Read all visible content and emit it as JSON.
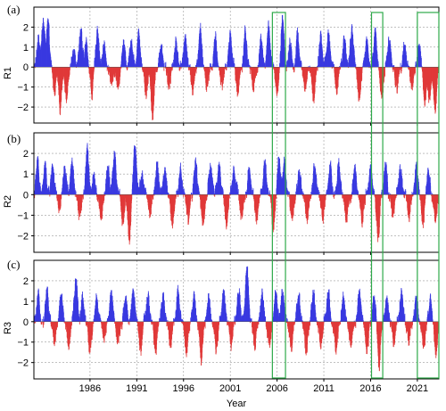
{
  "colors": {
    "positive": "#3a3ae0",
    "negative": "#e03a3a",
    "highlight": "#2eaa4a",
    "grid": "#9a9a9a",
    "axis": "#000000"
  },
  "chart_data": {
    "type": "bar",
    "xlabel": "Year",
    "xlim": [
      1980.0,
      2023.3
    ],
    "x_ticks": [
      1986,
      1991,
      1996,
      2001,
      2006,
      2011,
      2016,
      2021
    ],
    "x_tick_labels": [
      "1986",
      "1991",
      "1996",
      "2001",
      "2006",
      "2011",
      "2016",
      "2021"
    ],
    "ylim": [
      -2.8,
      3.0
    ],
    "y_ticks": [
      -2,
      -1,
      0,
      1,
      2
    ],
    "y_tick_labels": [
      "−2",
      "−1",
      "0",
      "1",
      "2"
    ],
    "grid": true,
    "highlight_periods": [
      [
        2005.5,
        2006.9
      ],
      [
        2016.1,
        2017.3
      ],
      [
        2021.0,
        2023.3
      ]
    ],
    "sampling": "weekly",
    "panels": [
      {
        "label": "(a)",
        "ylabel": "R1",
        "events": [
          {
            "t": 1980.5,
            "v": 1.5
          },
          {
            "t": 1981.0,
            "v": 2.3
          },
          {
            "t": 1981.5,
            "v": 2.2
          },
          {
            "t": 1982.2,
            "v": -1.2
          },
          {
            "t": 1982.8,
            "v": -2.1
          },
          {
            "t": 1983.5,
            "v": -1.6
          },
          {
            "t": 1984.3,
            "v": 1.0
          },
          {
            "t": 1985.0,
            "v": 1.9
          },
          {
            "t": 1985.6,
            "v": 1.2
          },
          {
            "t": 1986.2,
            "v": -1.3
          },
          {
            "t": 1986.8,
            "v": 2.0
          },
          {
            "t": 1987.5,
            "v": 1.1
          },
          {
            "t": 1988.3,
            "v": -0.8
          },
          {
            "t": 1989.0,
            "v": -1.1
          },
          {
            "t": 1989.6,
            "v": 1.2
          },
          {
            "t": 1990.4,
            "v": 1.5
          },
          {
            "t": 1991.2,
            "v": 1.9
          },
          {
            "t": 1992.0,
            "v": -1.4
          },
          {
            "t": 1992.7,
            "v": -2.5
          },
          {
            "t": 1993.6,
            "v": 1.1
          },
          {
            "t": 1994.4,
            "v": -1.0
          },
          {
            "t": 1995.2,
            "v": 1.3
          },
          {
            "t": 1996.2,
            "v": 1.7
          },
          {
            "t": 1997.0,
            "v": -1.2
          },
          {
            "t": 1997.8,
            "v": 1.9
          },
          {
            "t": 1998.5,
            "v": -1.1
          },
          {
            "t": 1999.4,
            "v": 1.4
          },
          {
            "t": 2000.1,
            "v": -0.9
          },
          {
            "t": 2001.0,
            "v": 1.7
          },
          {
            "t": 2001.8,
            "v": -1.3
          },
          {
            "t": 2002.6,
            "v": 1.8
          },
          {
            "t": 2003.5,
            "v": -1.1
          },
          {
            "t": 2004.3,
            "v": 1.5
          },
          {
            "t": 2005.1,
            "v": 2.1
          },
          {
            "t": 2006.0,
            "v": -1.5
          },
          {
            "t": 2006.6,
            "v": 2.4
          },
          {
            "t": 2007.4,
            "v": 1.3
          },
          {
            "t": 2008.2,
            "v": 1.7
          },
          {
            "t": 2009.0,
            "v": -1.2
          },
          {
            "t": 2009.9,
            "v": -1.7
          },
          {
            "t": 2010.7,
            "v": 1.5
          },
          {
            "t": 2011.5,
            "v": 1.9
          },
          {
            "t": 2012.4,
            "v": -1.3
          },
          {
            "t": 2013.2,
            "v": 1.6
          },
          {
            "t": 2014.0,
            "v": 2.0
          },
          {
            "t": 2014.8,
            "v": -1.6
          },
          {
            "t": 2015.6,
            "v": 1.3
          },
          {
            "t": 2016.5,
            "v": 1.8
          },
          {
            "t": 2017.2,
            "v": -1.5
          },
          {
            "t": 2018.0,
            "v": 1.4
          },
          {
            "t": 2018.8,
            "v": -1.1
          },
          {
            "t": 2019.6,
            "v": 1.3
          },
          {
            "t": 2020.4,
            "v": -1.0
          },
          {
            "t": 2021.2,
            "v": 1.2
          },
          {
            "t": 2021.8,
            "v": -1.9
          },
          {
            "t": 2022.3,
            "v": -1.6
          },
          {
            "t": 2022.9,
            "v": -2.3
          }
        ]
      },
      {
        "label": "(b)",
        "ylabel": "R2",
        "events": [
          {
            "t": 1980.4,
            "v": 1.6
          },
          {
            "t": 1981.2,
            "v": 1.4
          },
          {
            "t": 1982.0,
            "v": 1.5
          },
          {
            "t": 1982.7,
            "v": -0.8
          },
          {
            "t": 1983.3,
            "v": 1.3
          },
          {
            "t": 1984.1,
            "v": 1.6
          },
          {
            "t": 1984.9,
            "v": -1.0
          },
          {
            "t": 1985.7,
            "v": 2.2
          },
          {
            "t": 1986.4,
            "v": 1.1
          },
          {
            "t": 1987.2,
            "v": -1.2
          },
          {
            "t": 1987.9,
            "v": 1.3
          },
          {
            "t": 1988.6,
            "v": 2.1
          },
          {
            "t": 1989.5,
            "v": -1.3
          },
          {
            "t": 1990.2,
            "v": -2.3
          },
          {
            "t": 1990.8,
            "v": 2.4
          },
          {
            "t": 1991.6,
            "v": 1.1
          },
          {
            "t": 1992.4,
            "v": -1.1
          },
          {
            "t": 1993.2,
            "v": 1.5
          },
          {
            "t": 1994.0,
            "v": 1.2
          },
          {
            "t": 1994.8,
            "v": -1.5
          },
          {
            "t": 1995.7,
            "v": 1.3
          },
          {
            "t": 1996.5,
            "v": -1.2
          },
          {
            "t": 1997.3,
            "v": 1.5
          },
          {
            "t": 1998.1,
            "v": -1.5
          },
          {
            "t": 1998.9,
            "v": 1.4
          },
          {
            "t": 1999.8,
            "v": 1.5
          },
          {
            "t": 2000.6,
            "v": -1.4
          },
          {
            "t": 2001.4,
            "v": 1.3
          },
          {
            "t": 2002.2,
            "v": -1.0
          },
          {
            "t": 2003.0,
            "v": 1.2
          },
          {
            "t": 2003.8,
            "v": -1.2
          },
          {
            "t": 2004.7,
            "v": 1.6
          },
          {
            "t": 2005.6,
            "v": -1.6
          },
          {
            "t": 2006.2,
            "v": 2.0
          },
          {
            "t": 2006.8,
            "v": 1.6
          },
          {
            "t": 2007.6,
            "v": -1.1
          },
          {
            "t": 2008.4,
            "v": 1.3
          },
          {
            "t": 2009.2,
            "v": -1.3
          },
          {
            "t": 2010.0,
            "v": 1.5
          },
          {
            "t": 2010.9,
            "v": -1.1
          },
          {
            "t": 2011.7,
            "v": 1.5
          },
          {
            "t": 2012.6,
            "v": 1.6
          },
          {
            "t": 2013.4,
            "v": -1.3
          },
          {
            "t": 2014.3,
            "v": 1.4
          },
          {
            "t": 2015.1,
            "v": -1.2
          },
          {
            "t": 2016.0,
            "v": 1.3
          },
          {
            "t": 2016.8,
            "v": -2.2
          },
          {
            "t": 2017.6,
            "v": 1.5
          },
          {
            "t": 2018.4,
            "v": -1.2
          },
          {
            "t": 2019.2,
            "v": 1.3
          },
          {
            "t": 2020.1,
            "v": -1.0
          },
          {
            "t": 2020.9,
            "v": 1.2
          },
          {
            "t": 2021.6,
            "v": -1.4
          },
          {
            "t": 2022.2,
            "v": 1.2
          },
          {
            "t": 2022.9,
            "v": -1.3
          }
        ]
      },
      {
        "label": "(c)",
        "ylabel": "R3",
        "events": [
          {
            "t": 1980.5,
            "v": 1.2
          },
          {
            "t": 1981.4,
            "v": 1.6
          },
          {
            "t": 1982.2,
            "v": -1.1
          },
          {
            "t": 1982.9,
            "v": 1.4
          },
          {
            "t": 1983.7,
            "v": -1.2
          },
          {
            "t": 1984.5,
            "v": 2.1
          },
          {
            "t": 1985.2,
            "v": 1.3
          },
          {
            "t": 1986.0,
            "v": -1.5
          },
          {
            "t": 1986.7,
            "v": 1.2
          },
          {
            "t": 1987.5,
            "v": -1.0
          },
          {
            "t": 1988.3,
            "v": 1.6
          },
          {
            "t": 1989.0,
            "v": -1.1
          },
          {
            "t": 1989.8,
            "v": 1.3
          },
          {
            "t": 1990.6,
            "v": 1.5
          },
          {
            "t": 1991.4,
            "v": -1.4
          },
          {
            "t": 1992.2,
            "v": 1.2
          },
          {
            "t": 1993.0,
            "v": -1.6
          },
          {
            "t": 1993.8,
            "v": 1.4
          },
          {
            "t": 1994.6,
            "v": -1.1
          },
          {
            "t": 1995.4,
            "v": 1.3
          },
          {
            "t": 1996.3,
            "v": -1.5
          },
          {
            "t": 1997.1,
            "v": 1.2
          },
          {
            "t": 1997.9,
            "v": -2.0
          },
          {
            "t": 1998.7,
            "v": 1.3
          },
          {
            "t": 1999.5,
            "v": -1.2
          },
          {
            "t": 2000.3,
            "v": 1.5
          },
          {
            "t": 2001.1,
            "v": -1.1
          },
          {
            "t": 2001.9,
            "v": 1.6
          },
          {
            "t": 2002.8,
            "v": 2.7
          },
          {
            "t": 2003.6,
            "v": -1.3
          },
          {
            "t": 2004.4,
            "v": 1.3
          },
          {
            "t": 2005.2,
            "v": -1.2
          },
          {
            "t": 2005.9,
            "v": 1.4
          },
          {
            "t": 2006.6,
            "v": 1.7
          },
          {
            "t": 2007.5,
            "v": -1.3
          },
          {
            "t": 2008.3,
            "v": 1.4
          },
          {
            "t": 2009.1,
            "v": -1.7
          },
          {
            "t": 2009.9,
            "v": 1.3
          },
          {
            "t": 2010.7,
            "v": -1.2
          },
          {
            "t": 2011.5,
            "v": 1.5
          },
          {
            "t": 2012.3,
            "v": -1.6
          },
          {
            "t": 2013.1,
            "v": 1.3
          },
          {
            "t": 2013.9,
            "v": -1.2
          },
          {
            "t": 2014.8,
            "v": 1.5
          },
          {
            "t": 2015.6,
            "v": -1.4
          },
          {
            "t": 2016.4,
            "v": 1.3
          },
          {
            "t": 2016.9,
            "v": -2.2
          },
          {
            "t": 2017.7,
            "v": 1.2
          },
          {
            "t": 2018.5,
            "v": -1.1
          },
          {
            "t": 2019.3,
            "v": 1.4
          },
          {
            "t": 2020.1,
            "v": -1.0
          },
          {
            "t": 2020.9,
            "v": 1.3
          },
          {
            "t": 2021.7,
            "v": -1.2
          },
          {
            "t": 2022.4,
            "v": 1.1
          },
          {
            "t": 2023.0,
            "v": -1.5
          }
        ]
      }
    ]
  }
}
